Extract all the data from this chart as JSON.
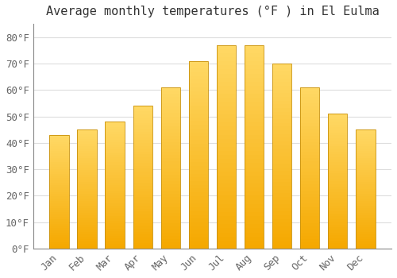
{
  "title": "Average monthly temperatures (°F ) in El Eulma",
  "months": [
    "Jan",
    "Feb",
    "Mar",
    "Apr",
    "May",
    "Jun",
    "Jul",
    "Aug",
    "Sep",
    "Oct",
    "Nov",
    "Dec"
  ],
  "values": [
    43,
    45,
    48,
    54,
    61,
    71,
    77,
    77,
    70,
    61,
    51,
    45
  ],
  "bar_color_bottom": "#F5A800",
  "bar_color_top": "#FFD966",
  "bar_edge_color": "#C8900A",
  "background_color": "#FFFFFF",
  "grid_color": "#DDDDDD",
  "ylim": [
    0,
    85
  ],
  "yticks": [
    0,
    10,
    20,
    30,
    40,
    50,
    60,
    70,
    80
  ],
  "title_fontsize": 11,
  "tick_fontsize": 9,
  "tick_label_color": "#666666",
  "title_color": "#333333",
  "bar_width": 0.7
}
